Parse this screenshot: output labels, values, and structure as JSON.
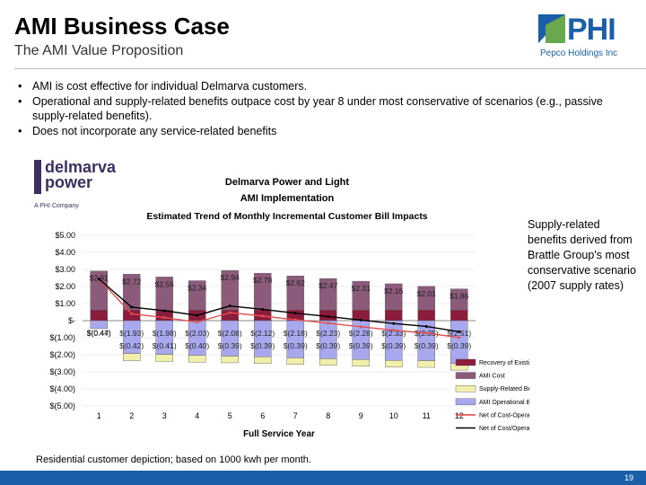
{
  "header": {
    "title": "AMI Business Case",
    "subtitle": "The AMI Value Proposition",
    "logo_text": "PHI",
    "logo_subtext": "Pepco Holdings Inc"
  },
  "bullets": [
    "AMI is cost effective for individual Delmarva customers.",
    "Operational and supply-related benefits outpace cost by year 8 under most conservative of scenarios (e.g., passive supply-related benefits).",
    "Does not incorporate any service-related benefits"
  ],
  "chart_logo": {
    "line1": "delmarva",
    "line2": "power",
    "line3": "A PHI Company"
  },
  "side_note": "Supply-related benefits derived from Brattle Group's most conservative scenario (2007 supply rates)",
  "footnote": "Residential customer depiction; based on 1000 kwh per month.",
  "page_number": "19",
  "colors": {
    "brand_blue": "#1a5fa8",
    "existing_meters": "#8c1c3c",
    "ami_cost": "#8c5a7a",
    "supply_benefits": "#f1efaa",
    "operational_benefits": "#a8a8ee",
    "net_ops_supply": "#e05050",
    "net_ops": "#000000"
  },
  "chart_data": {
    "type": "bar",
    "title": "Delmarva Power and Light",
    "subtitle": "AMI Implementation",
    "subtitle2": "Estimated Trend of Monthly Incremental Customer Bill Impacts",
    "xlabel": "Full Service Year",
    "ylabel": "",
    "ylim": [
      -5,
      5
    ],
    "categories": [
      "1",
      "2",
      "3",
      "4",
      "5",
      "6",
      "7",
      "8",
      "9",
      "10",
      "11",
      "12"
    ],
    "y_ticks": [
      "$5.00",
      "$4.00",
      "$3.00",
      "$2.00",
      "$1.00",
      "$-",
      "$(1.00)",
      "$(2.00)",
      "$(3.00)",
      "$(4.00)",
      "$(5.00)"
    ],
    "y_tick_values": [
      5,
      4,
      3,
      2,
      1,
      0,
      -1,
      -2,
      -3,
      -4,
      -5
    ],
    "series": [
      {
        "name": "Recovery of Existing Meters",
        "type": "bar",
        "color": "#8c1c3c",
        "values": [
          0.62,
          0.62,
          0.62,
          0.62,
          0.62,
          0.62,
          0.62,
          0.62,
          0.62,
          0.62,
          0.62,
          0.62
        ]
      },
      {
        "name": "AMI Cost",
        "type": "bar",
        "color": "#8c5a7a",
        "values": [
          2.91,
          2.72,
          2.56,
          2.34,
          2.94,
          2.78,
          2.62,
          2.47,
          2.31,
          2.16,
          2.01,
          1.86
        ],
        "labels": [
          "$2.91",
          "$2.72",
          "$2.56",
          "$2.34",
          "$2.94",
          "$2.78",
          "$2.62",
          "$2.47",
          "$2.31",
          "$2.16",
          "$2.01",
          "$1.86"
        ]
      },
      {
        "name": "Supply-Related Benefits",
        "type": "bar",
        "color": "#f1efaa",
        "values": [
          0,
          -0.42,
          -0.41,
          -0.4,
          -0.39,
          -0.39,
          -0.39,
          -0.39,
          -0.39,
          -0.39,
          -0.39,
          -0.39
        ],
        "labels": [
          "",
          "$(0.42)",
          "$(0.41)",
          "$(0.40)",
          "$(0.39)",
          "$(0.39)",
          "$(0.39)",
          "$(0.39)",
          "$(0.39)",
          "$(0.39)",
          "$(0.39)",
          "$(0.39)"
        ]
      },
      {
        "name": "AMI Operational Benefits",
        "type": "bar",
        "color": "#a8a8ee",
        "values": [
          -0.47,
          -1.93,
          -1.98,
          -2.03,
          -2.08,
          -2.12,
          -2.18,
          -2.23,
          -2.28,
          -2.33,
          -2.35,
          -2.51
        ],
        "labels": [
          "$(0.47)",
          "$(1.93)",
          "$(1.98)",
          "$(2.03)",
          "$(2.08)",
          "$(2.12)",
          "$(2.18)",
          "$(2.23)",
          "$(2.28)",
          "$(2.33)",
          "$(2.35)",
          "$(2.51)"
        ]
      },
      {
        "name": "Net of Cost-Operational and Supply Benefits",
        "type": "line",
        "color": "#e05050",
        "values": [
          2.44,
          0.4,
          0.18,
          -0.09,
          0.47,
          0.27,
          0.05,
          -0.15,
          -0.36,
          -0.56,
          -0.73,
          -0.99
        ]
      },
      {
        "name": "Net of Cost/Operational Benefit",
        "type": "line",
        "color": "#000000",
        "values": [
          2.44,
          0.79,
          0.58,
          0.31,
          0.86,
          0.66,
          0.44,
          0.24,
          0.03,
          -0.17,
          -0.34,
          -0.65
        ]
      }
    ],
    "extra_labels": [
      "$(0.44)"
    ],
    "legend_position": "bottom-right"
  }
}
